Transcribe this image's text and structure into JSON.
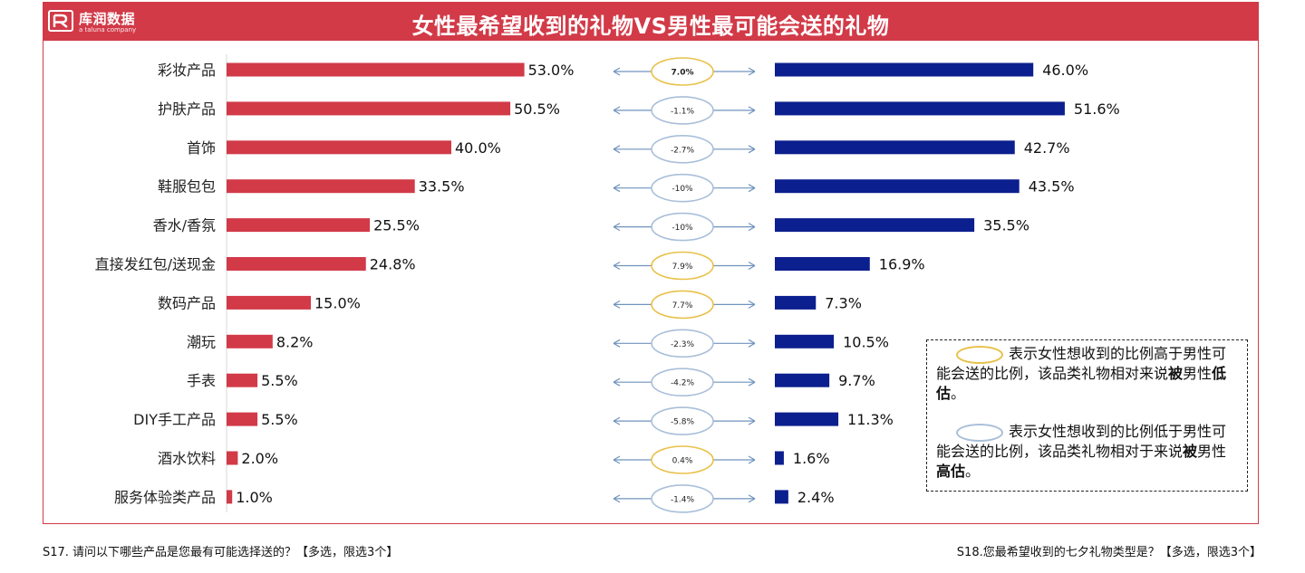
{
  "header": {
    "brand_name": "库润数据",
    "brand_sub": "a taluna company",
    "title": "女性最希望收到的礼物VS男性最可能会送的礼物"
  },
  "colors": {
    "female_bar": "#d23a48",
    "male_bar": "#0c1f8e",
    "positive_oval": "#e8c14a",
    "negative_oval": "#a9bfd9",
    "arrow": "#6f93bd"
  },
  "chart_data": {
    "type": "bar",
    "categories": [
      "彩妆产品",
      "护肤产品",
      "首饰",
      "鞋服包包",
      "香水/香氛",
      "直接发红包/送现金",
      "数码产品",
      "潮玩",
      "手表",
      "DIY手工产品",
      "酒水饮料",
      "服务体验类产品"
    ],
    "series": [
      {
        "values": [
          53.0,
          50.5,
          40.0,
          33.5,
          25.5,
          24.8,
          15.0,
          8.2,
          5.5,
          5.5,
          2.0,
          1.0
        ],
        "labels": [
          "53.0%",
          "50.5%",
          "40.0%",
          "33.5%",
          "25.5%",
          "24.8%",
          "15.0%",
          "8.2%",
          "5.5%",
          "5.5%",
          "2.0%",
          "1.0%"
        ]
      },
      {
        "values": [
          46.0,
          51.6,
          42.7,
          43.5,
          35.5,
          16.9,
          7.3,
          10.5,
          9.7,
          11.3,
          1.6,
          2.4
        ],
        "labels": [
          "46.0%",
          "51.6%",
          "42.7%",
          "43.5%",
          "35.5%",
          "16.9%",
          "7.3%",
          "10.5%",
          "9.7%",
          "11.3%",
          "1.6%",
          "2.4%"
        ]
      }
    ],
    "differences": [
      7.0,
      -1.1,
      -2.7,
      -10,
      -10,
      7.9,
      7.7,
      -2.3,
      -4.2,
      -5.8,
      0.4,
      -1.4
    ],
    "difference_labels": [
      "7.0%",
      "-1.1%",
      "-2.7%",
      "-10%",
      "-10%",
      "7.9%",
      "7.7%",
      "-2.3%",
      "-4.2%",
      "-5.8%",
      "0.4%",
      "-1.4%"
    ],
    "xlim": [
      0,
      60
    ]
  },
  "legend": {
    "positive_text": "表示女性想收到的比例高于男性可能会送的比例，该品类礼物相对来说",
    "positive_prefix": "被",
    "positive_mid": "男性",
    "positive_bold": "低估",
    "positive_end": "。",
    "negative_text": "表示女性想收到的比例低于男性可能会送的比例，该品类礼物相对于来说",
    "negative_prefix": "被",
    "negative_mid": "男性",
    "negative_bold": "高估",
    "negative_end": "。"
  },
  "footnotes": {
    "left": "S17. 请问以下哪些产品是您最有可能选择送的？【多选，限选3个】",
    "right": "S18.您最希望收到的七夕礼物类型是？【多选，限选3个】"
  }
}
